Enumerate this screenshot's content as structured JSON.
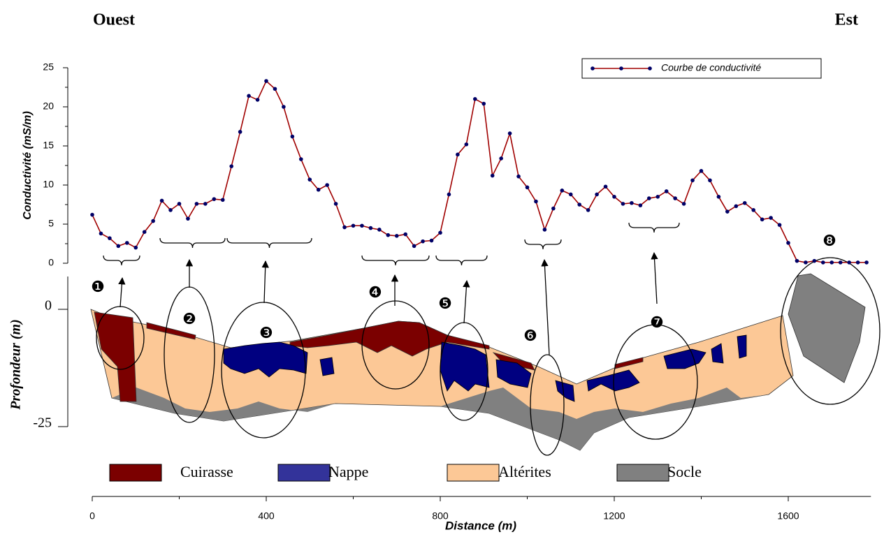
{
  "chart_data": [
    {
      "type": "line",
      "left_label": "Ouest",
      "right_label": "Est",
      "xlabel": "Distance (m)",
      "ylabel": "Conductivité (mS/m)",
      "x": [
        0,
        20,
        40,
        60,
        80,
        100,
        120,
        140,
        160,
        180,
        200,
        220,
        240,
        260,
        280,
        300,
        320,
        340,
        360,
        380,
        400,
        420,
        440,
        460,
        480,
        500,
        520,
        540,
        560,
        580,
        600,
        620,
        640,
        660,
        680,
        700,
        720,
        740,
        760,
        780,
        800,
        820,
        840,
        860,
        880,
        900,
        920,
        940,
        960,
        980,
        1000,
        1020,
        1040,
        1060,
        1080,
        1100,
        1120,
        1140,
        1160,
        1180,
        1200,
        1220,
        1240,
        1260,
        1280,
        1300,
        1320,
        1340,
        1360,
        1380,
        1400,
        1420,
        1440,
        1460,
        1480,
        1500,
        1520,
        1540,
        1560,
        1580,
        1600,
        1620,
        1640,
        1660,
        1680,
        1700,
        1720,
        1740,
        1760,
        1780
      ],
      "xlim": [
        0,
        1790
      ],
      "xticks": [
        0,
        400,
        800,
        1200,
        1600
      ],
      "ylim": [
        0,
        25
      ],
      "yticks": [
        0,
        5,
        10,
        15,
        20,
        25
      ],
      "legend": "upper right",
      "series": [
        {
          "name": "Courbe de conductivité",
          "color": "#a00000",
          "marker_color": "#000066",
          "values": [
            6.2,
            3.8,
            3.2,
            2.2,
            2.6,
            2.0,
            4.0,
            5.4,
            8.0,
            6.8,
            7.6,
            5.7,
            7.6,
            7.6,
            8.2,
            8.1,
            12.4,
            16.8,
            21.4,
            20.9,
            23.3,
            22.3,
            20.0,
            16.2,
            13.3,
            10.7,
            9.4,
            10.0,
            7.6,
            4.6,
            4.8,
            4.8,
            4.5,
            4.3,
            3.6,
            3.5,
            3.7,
            2.2,
            2.8,
            2.9,
            3.9,
            8.8,
            13.9,
            15.2,
            21.0,
            20.4,
            11.2,
            13.4,
            16.6,
            11.1,
            9.7,
            7.9,
            4.3,
            7.0,
            9.3,
            8.8,
            7.5,
            6.8,
            8.8,
            9.8,
            8.5,
            7.6,
            7.7,
            7.4,
            8.3,
            8.5,
            9.2,
            8.3,
            7.6,
            10.6,
            11.8,
            10.6,
            8.5,
            6.6,
            7.3,
            7.7,
            6.8,
            5.6,
            5.8,
            4.9,
            2.6,
            0.3,
            0.1,
            0.3,
            0.1,
            0.1,
            0.1,
            0.1,
            0.1,
            0.1
          ]
        }
      ]
    },
    {
      "type": "cross-section",
      "ylabel": "Profondeur (m)",
      "ylim": [
        -25,
        7
      ],
      "yticks": [
        0,
        -25
      ],
      "layers": [
        {
          "name": "Cuirasse",
          "color": "#7b0000"
        },
        {
          "name": "Nappe",
          "color": "#33339a"
        },
        {
          "name": "Altérites",
          "color": "#fcc896"
        },
        {
          "name": "Socle",
          "color": "#808080"
        }
      ],
      "zones": [
        "❶",
        "❷",
        "❸",
        "❹",
        "❺",
        "❻",
        "❼",
        "❽"
      ]
    }
  ]
}
